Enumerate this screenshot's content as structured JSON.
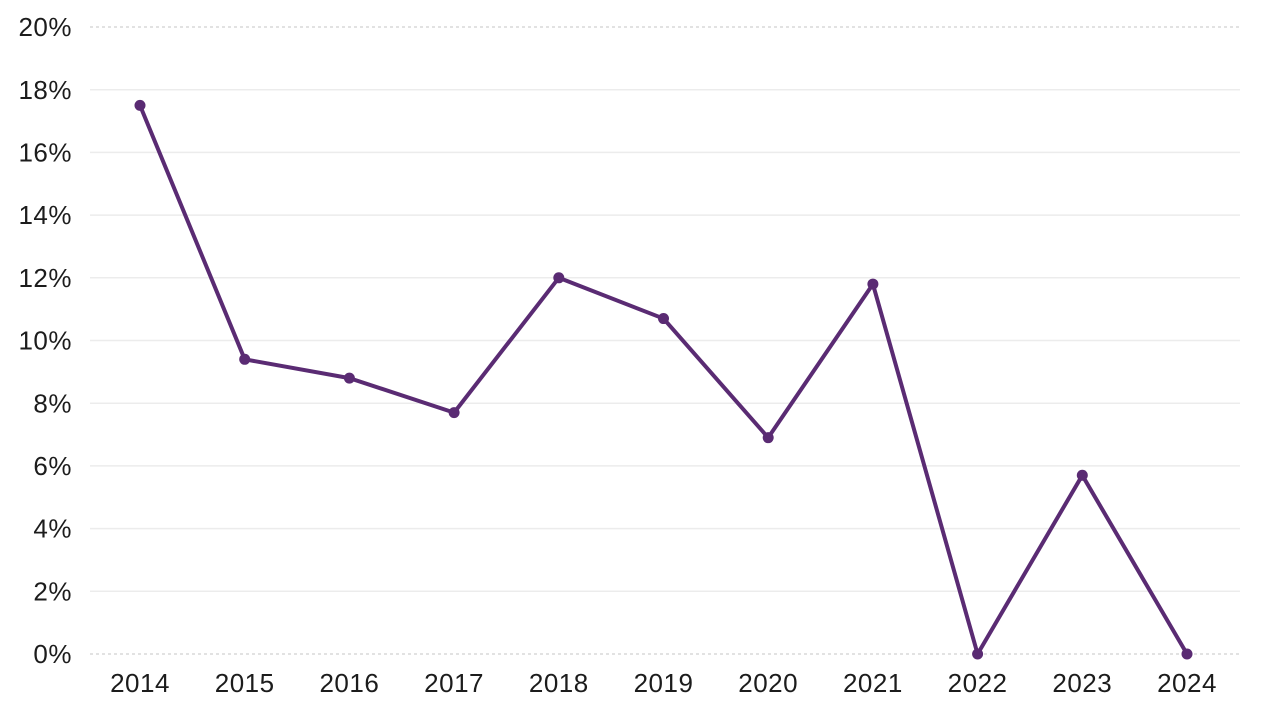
{
  "chart_data": {
    "type": "line",
    "title": "",
    "xlabel": "",
    "ylabel": "",
    "categories": [
      "2014",
      "2015",
      "2016",
      "2017",
      "2018",
      "2019",
      "2020",
      "2021",
      "2022",
      "2023",
      "2024"
    ],
    "values": [
      17.5,
      9.4,
      8.8,
      7.7,
      12,
      10.7,
      6.9,
      11.8,
      0,
      5.7,
      0
    ],
    "ylim": [
      0,
      20
    ],
    "y_tick_step": 2,
    "y_tick_labels": [
      "0%",
      "2%",
      "4%",
      "6%",
      "8%",
      "10%",
      "12%",
      "14%",
      "16%",
      "18%",
      "20%"
    ],
    "legend": "none",
    "grid": "horizontal",
    "boundary_gridlines_dashed": true,
    "colors": {
      "line": "#5a2b73",
      "point": "#5a2b73",
      "gridline": "#ececec",
      "boundary_gridline": "#d9d9d9",
      "tick_text": "#1c1c1c",
      "background": "#ffffff"
    }
  }
}
